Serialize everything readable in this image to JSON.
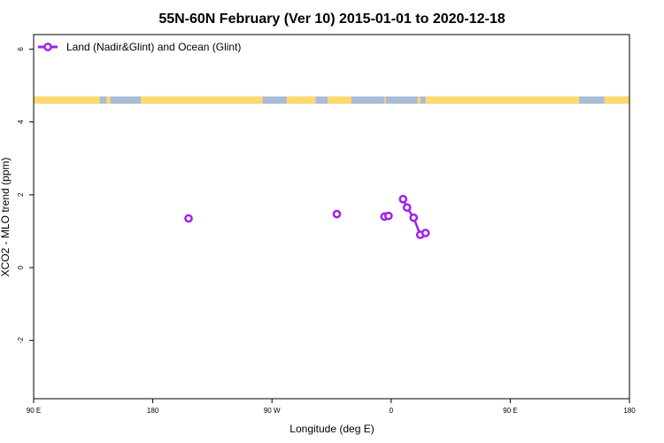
{
  "chart_data": {
    "type": "line",
    "title": "55N-60N February (Ver 10)   2015-01-01 to 2020-12-18",
    "xlabel": "Longitude (deg E)",
    "ylabel": "XCO2 - MLO trend (ppm)",
    "xlim": [
      90,
      540
    ],
    "ylim": [
      -3.6,
      6.4
    ],
    "x_ticks": [
      {
        "value": 90,
        "label": "90 E"
      },
      {
        "value": 180,
        "label": "180"
      },
      {
        "value": 270,
        "label": "90 W"
      },
      {
        "value": 360,
        "label": "0"
      },
      {
        "value": 450,
        "label": "90 E"
      },
      {
        "value": 540,
        "label": "180"
      }
    ],
    "y_ticks": [
      {
        "value": -2,
        "label": "-2"
      },
      {
        "value": 0,
        "label": "0"
      },
      {
        "value": 2,
        "label": "2"
      },
      {
        "value": 4,
        "label": "4"
      },
      {
        "value": 6,
        "label": "6"
      }
    ],
    "legend_position": "top-left",
    "grid": false,
    "series": [
      {
        "name": "Land (Nadir&Glint) and Ocean (Glint)",
        "color": "#a020f0",
        "marker": "open-circle",
        "points": [
          {
            "x": 207,
            "y": 1.35
          },
          {
            "x": 319,
            "y": 1.47
          },
          {
            "x": 355,
            "y": 1.4
          },
          {
            "x": 358,
            "y": 1.42
          },
          {
            "x": 369,
            "y": 1.88
          },
          {
            "x": 372,
            "y": 1.65
          },
          {
            "x": 377,
            "y": 1.37
          },
          {
            "x": 382,
            "y": 0.9
          },
          {
            "x": 386,
            "y": 0.95
          }
        ],
        "line_segments": [
          [
            369,
            372,
            377,
            382,
            386
          ]
        ]
      }
    ],
    "land_mask_band": {
      "y_range": [
        4.5,
        4.7
      ],
      "ocean_color": "#a9bcd6",
      "land_color": "#ffd870",
      "land_intervals": [
        [
          90,
          140
        ],
        [
          145,
          148
        ],
        [
          171,
          263
        ],
        [
          281,
          303
        ],
        [
          312,
          330
        ],
        [
          355,
          356
        ],
        [
          380,
          382
        ],
        [
          386,
          502
        ],
        [
          521,
          540
        ]
      ]
    }
  }
}
